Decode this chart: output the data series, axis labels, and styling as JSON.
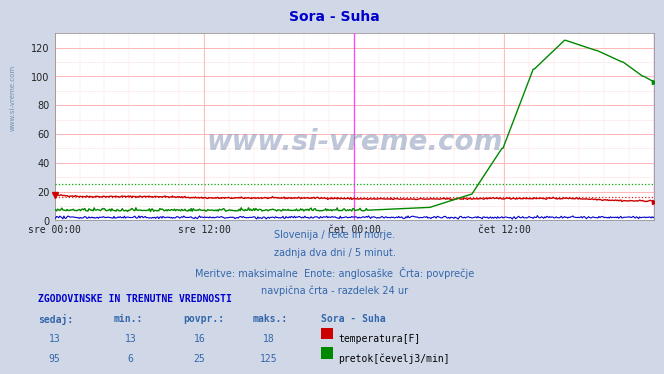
{
  "title": "Sora - Suha",
  "title_color": "#0000cc",
  "bg_color": "#d0d8e8",
  "plot_bg_color": "#ffffff",
  "grid_major_color": "#ffaaaa",
  "grid_minor_color": "#ffdddd",
  "xlabel_ticks": [
    "sre 00:00",
    "sre 12:00",
    "čet 00:00",
    "čet 12:00"
  ],
  "xlabel_tick_positions": [
    0.0,
    0.25,
    0.5,
    0.75
  ],
  "ylim": [
    0,
    130
  ],
  "yticks": [
    0,
    20,
    40,
    60,
    80,
    100,
    120
  ],
  "vline_color": "#ff44ff",
  "vline_positions": [
    0.5
  ],
  "vline_right_color": "#ff44ff",
  "temp_color": "#cc0000",
  "temp_avg_color": "#dd2222",
  "flow_color": "#008800",
  "flow_avg_color": "#00aa00",
  "height_color": "#0000cc",
  "watermark": "www.si-vreme.com",
  "watermark_color": "#8899bb",
  "left_label": "www.si-vreme.com",
  "subtitle_lines": [
    "Slovenija / reke in morje.",
    "zadnja dva dni / 5 minut.",
    "Meritve: maksimalne  Enote: anglosaške  Črta: povprečje",
    "navpična črta - razdelek 24 ur"
  ],
  "table_header": "ZGODOVINSKE IN TRENUTNE VREDNOSTI",
  "table_cols": [
    "sedaj:",
    "min.:",
    "povpr.:",
    "maks.:",
    "Sora - Suha"
  ],
  "table_row1": [
    "13",
    "13",
    "16",
    "18"
  ],
  "table_row1_label": "temperatura[F]",
  "table_row1_color": "#cc0000",
  "table_row2": [
    "95",
    "6",
    "25",
    "125"
  ],
  "table_row2_label": "pretok[čevelj3/min]",
  "table_row2_color": "#008800",
  "temp_avg_value": 16,
  "flow_avg_value": 25,
  "n_points": 576
}
